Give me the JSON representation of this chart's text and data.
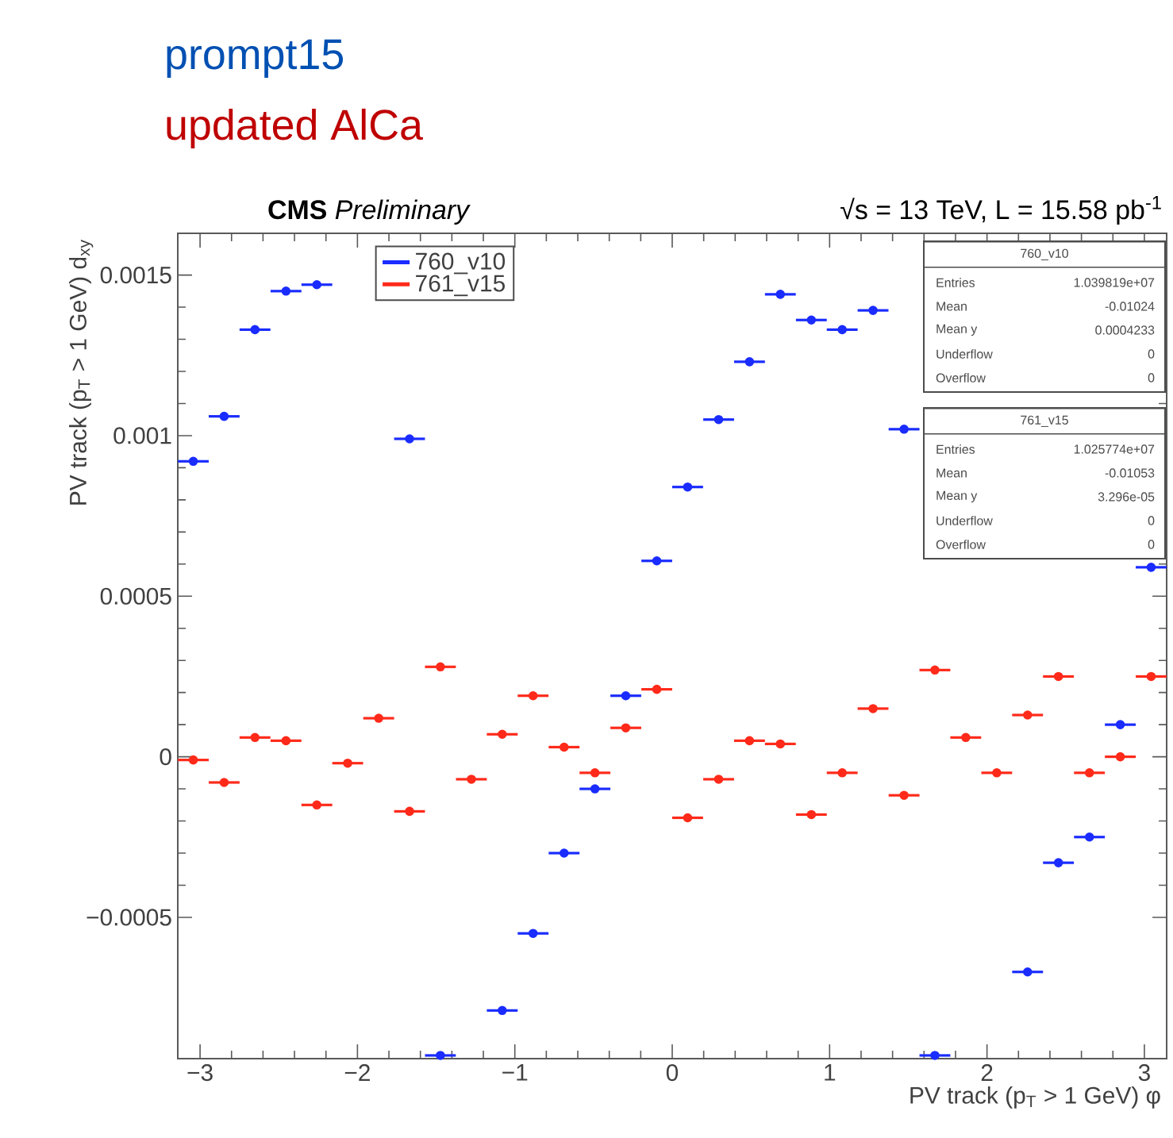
{
  "chart_data": {
    "type": "scatter",
    "xlabel": "PV track (p$_{T}$ > 1 GeV) φ",
    "ylabel": "PV track (p$_{T}$ > 1 GeV) d$_{xy}$",
    "x": [
      -3.043,
      -2.847,
      -2.651,
      -2.454,
      -2.258,
      -2.062,
      -1.865,
      -1.669,
      -1.473,
      -1.276,
      -1.08,
      -0.884,
      -0.687,
      -0.491,
      -0.295,
      -0.098,
      0.098,
      0.295,
      0.491,
      0.687,
      0.884,
      1.08,
      1.276,
      1.473,
      1.669,
      1.865,
      2.062,
      2.258,
      2.454,
      2.651,
      2.847,
      3.043
    ],
    "series": [
      {
        "name": "760_v10",
        "color": "#1a2cff",
        "values": [
          0.00092,
          0.00106,
          0.00133,
          0.00145,
          0.00147,
          null,
          null,
          0.00099,
          -0.00093,
          null,
          -0.00079,
          -0.00055,
          -0.0003,
          -0.0001,
          0.00019,
          0.00061,
          0.00084,
          0.00105,
          0.00123,
          0.00144,
          0.00136,
          0.00133,
          0.00139,
          0.00102,
          -0.00093,
          null,
          null,
          -0.00067,
          -0.00033,
          -0.00025,
          0.0001,
          0.00059
        ],
        "xerrors": [
          0.098,
          0.098,
          0.098,
          0.098,
          0.098,
          null,
          null,
          0.098,
          0.098,
          null,
          0.098,
          0.098,
          0.098,
          0.098,
          0.098,
          0.098,
          0.098,
          0.098,
          0.098,
          0.098,
          0.098,
          0.098,
          0.098,
          0.098,
          0.098,
          null,
          null,
          0.098,
          0.098,
          0.098,
          0.098,
          0.098
        ]
      },
      {
        "name": "761_v15",
        "color": "#ff2a1a",
        "values": [
          -1e-05,
          -8e-05,
          6e-05,
          5e-05,
          -0.00015,
          -2e-05,
          0.00012,
          -0.00017,
          0.00028,
          -7e-05,
          7e-05,
          0.00019,
          3e-05,
          -5e-05,
          9e-05,
          0.00021,
          -0.00019,
          -7e-05,
          5e-05,
          4e-05,
          -0.00018,
          -5e-05,
          0.00015,
          -0.00012,
          0.00027,
          6e-05,
          -5e-05,
          0.00013,
          0.00025,
          -5e-05,
          0.0,
          0.00025
        ],
        "xerrors": [
          0.098,
          0.098,
          0.098,
          0.098,
          0.098,
          0.098,
          0.098,
          0.098,
          0.098,
          0.098,
          0.098,
          0.098,
          0.098,
          0.098,
          0.098,
          0.098,
          0.098,
          0.098,
          0.098,
          0.098,
          0.098,
          0.098,
          0.098,
          0.098,
          0.098,
          0.098,
          0.098,
          0.098,
          0.098,
          0.098,
          0.098,
          0.098
        ]
      }
    ],
    "xlim": [
      -3.1416,
      3.1416
    ],
    "ylim": [
      -0.00094,
      0.00163
    ],
    "xticks": [
      {
        "value": -3,
        "label": "−3"
      },
      {
        "value": -2,
        "label": "−2"
      },
      {
        "value": -1,
        "label": "−1"
      },
      0,
      1,
      2,
      3
    ],
    "yticks": [
      {
        "value": -0.0005,
        "label": "−0.0005"
      },
      0,
      0.0005,
      0.001,
      0.0015
    ],
    "legend": "top",
    "grid": false,
    "annotations": [
      "prompt15",
      "updated AlCa",
      "**CMS** *Preliminary*",
      "√s = 13 TeV, L = 15.58 pb$^{-1}$",
      "760_v10",
      "Entries",
      "1.039819e+07",
      "Mean",
      "-0.01024",
      "Mean y",
      "0.0004233",
      "Underflow",
      "0",
      "Overflow",
      "0",
      "761_v15",
      "Entries",
      "1.025774e+07",
      "Mean",
      "-0.01053",
      "Mean y",
      "3.296e-05",
      "Underflow",
      "0",
      "Overflow",
      "0"
    ]
  }
}
